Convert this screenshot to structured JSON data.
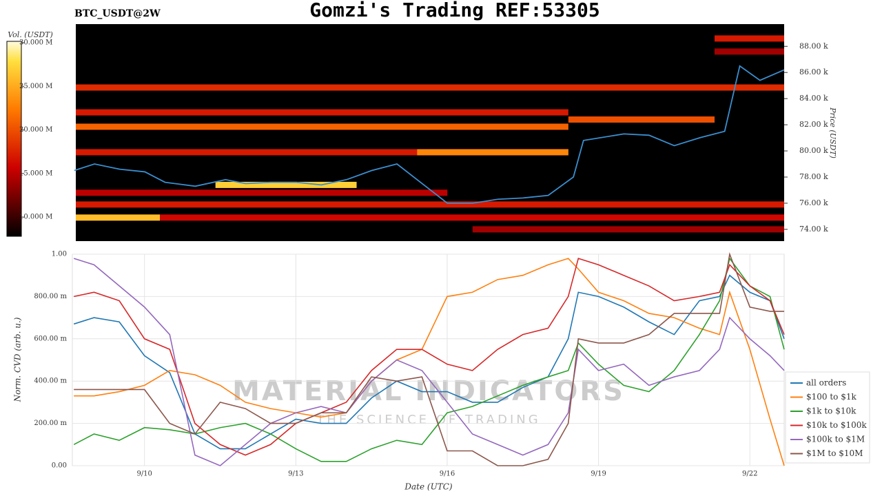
{
  "chart_data": [
    {
      "type": "heatmap",
      "title": "Gomzi's Trading REF:53305",
      "label": "BTC_USDT@2W",
      "ylabel": "Price (USDT)",
      "xlim": [
        8.63,
        22.68
      ],
      "ylim": [
        73.1,
        89.7
      ],
      "yticks": [
        {
          "value": 74,
          "label": "74.00 k"
        },
        {
          "value": 76,
          "label": "76.00 k"
        },
        {
          "value": 78,
          "label": "78.00 k"
        },
        {
          "value": 80,
          "label": "80.00 k"
        },
        {
          "value": 82,
          "label": "82.00 k"
        },
        {
          "value": 84,
          "label": "84.00 k"
        },
        {
          "value": 86,
          "label": "86.00 k"
        },
        {
          "value": 88,
          "label": "88.00 k"
        }
      ],
      "colorbar": {
        "label": "Vol. (USDT)",
        "lim": [
          7.8,
          30.16
        ],
        "ticks": [
          {
            "value": 10,
            "label": "10.000 M"
          },
          {
            "value": 15,
            "label": "15.000 M"
          },
          {
            "value": 20,
            "label": "20.000 M"
          },
          {
            "value": 25,
            "label": "25.000 M"
          },
          {
            "value": 30,
            "label": "30.000 M"
          }
        ]
      },
      "heatmap": {
        "x_start": [
          8.63,
          8.63,
          8.63,
          8.63,
          15.4,
          8.63,
          8.63,
          10.3,
          11.4,
          8.63,
          16.5,
          18.4,
          21.3,
          21.3
        ],
        "x_end": [
          22.68,
          18.4,
          18.4,
          18.4,
          18.4,
          22.68,
          10.3,
          22.68,
          14.2,
          16.0,
          22.68,
          21.3,
          22.68,
          22.68
        ],
        "price": [
          84.85,
          82.95,
          81.85,
          79.9,
          79.9,
          75.9,
          74.9,
          74.9,
          77.4,
          76.8,
          74.0,
          82.4,
          88.6,
          87.6
        ],
        "volume": [
          18,
          17,
          21,
          17,
          23,
          17,
          26,
          16,
          27,
          15,
          14,
          20,
          17,
          14
        ]
      },
      "price_line": {
        "color": "#3a8fd0",
        "x": [
          8.6,
          9.0,
          9.5,
          10.0,
          10.4,
          11.0,
          11.6,
          12.0,
          12.5,
          13.0,
          13.5,
          14.0,
          14.5,
          15.0,
          15.4,
          16.0,
          16.5,
          17.0,
          17.5,
          18.0,
          18.5,
          18.7,
          19.5,
          20.0,
          20.5,
          21.0,
          21.5,
          21.8,
          22.2,
          22.68
        ],
        "values": [
          78.5,
          79.0,
          78.6,
          78.4,
          77.6,
          77.3,
          77.8,
          77.5,
          77.6,
          77.6,
          77.4,
          77.8,
          78.5,
          79.0,
          77.8,
          76.0,
          76.0,
          76.3,
          76.4,
          76.6,
          78.0,
          80.8,
          81.3,
          81.2,
          80.4,
          81.0,
          81.5,
          86.5,
          85.4,
          86.2
        ]
      }
    },
    {
      "type": "line",
      "xlabel": "Date (UTC)",
      "ylabel": "Norm. CVD (arb. u.)",
      "xlim": [
        8.57,
        22.68
      ],
      "xticks": [
        {
          "value": 10,
          "label": "9/10"
        },
        {
          "value": 13,
          "label": "9/13"
        },
        {
          "value": 16,
          "label": "9/16"
        },
        {
          "value": 19,
          "label": "9/19"
        },
        {
          "value": 22,
          "label": "9/22"
        }
      ],
      "ylim": [
        0,
        1
      ],
      "yticks": [
        {
          "value": 0,
          "label": "0.00"
        },
        {
          "value": 0.2,
          "label": "200.00 m"
        },
        {
          "value": 0.4,
          "label": "400.00 m"
        },
        {
          "value": 0.6,
          "label": "600.00 m"
        },
        {
          "value": 0.8,
          "label": "800.00 m"
        },
        {
          "value": 1,
          "label": "1.00"
        }
      ],
      "grid": true,
      "legend": "lower right",
      "watermark": [
        "MATERIAL INDICATORS",
        "THE SCIENCE OF TRADING"
      ],
      "x": [
        8.6,
        9.0,
        9.5,
        10.0,
        10.5,
        11.0,
        11.5,
        12.0,
        12.5,
        13.0,
        13.5,
        14.0,
        14.5,
        15.0,
        15.5,
        16.0,
        16.5,
        17.0,
        17.5,
        18.0,
        18.4,
        18.6,
        19.0,
        19.5,
        20.0,
        20.5,
        21.0,
        21.4,
        21.6,
        22.0,
        22.4,
        22.68
      ],
      "series": [
        {
          "name": "all orders",
          "color": "#1f77b4",
          "values": [
            0.67,
            0.7,
            0.68,
            0.52,
            0.44,
            0.15,
            0.08,
            0.08,
            0.15,
            0.22,
            0.2,
            0.2,
            0.32,
            0.4,
            0.35,
            0.35,
            0.3,
            0.3,
            0.37,
            0.42,
            0.6,
            0.82,
            0.8,
            0.75,
            0.68,
            0.62,
            0.78,
            0.8,
            0.9,
            0.82,
            0.78,
            0.6
          ]
        },
        {
          "name": "$100 to $1k",
          "color": "#ff7f0e",
          "values": [
            0.33,
            0.33,
            0.35,
            0.38,
            0.45,
            0.43,
            0.38,
            0.3,
            0.27,
            0.25,
            0.23,
            0.25,
            0.4,
            0.5,
            0.55,
            0.8,
            0.82,
            0.88,
            0.9,
            0.95,
            0.98,
            0.93,
            0.82,
            0.78,
            0.72,
            0.7,
            0.65,
            0.62,
            0.82,
            0.55,
            0.22,
            0.0
          ]
        },
        {
          "name": "$1k to $10k",
          "color": "#2ca02c",
          "values": [
            0.1,
            0.15,
            0.12,
            0.18,
            0.17,
            0.15,
            0.18,
            0.2,
            0.15,
            0.08,
            0.02,
            0.02,
            0.08,
            0.12,
            0.1,
            0.25,
            0.28,
            0.33,
            0.38,
            0.42,
            0.45,
            0.58,
            0.48,
            0.38,
            0.35,
            0.45,
            0.62,
            0.78,
            0.98,
            0.85,
            0.8,
            0.55
          ]
        },
        {
          "name": "$10k to $100k",
          "color": "#d62728",
          "values": [
            0.8,
            0.82,
            0.78,
            0.6,
            0.55,
            0.2,
            0.1,
            0.05,
            0.1,
            0.2,
            0.25,
            0.3,
            0.45,
            0.55,
            0.55,
            0.48,
            0.45,
            0.55,
            0.62,
            0.65,
            0.8,
            0.98,
            0.95,
            0.9,
            0.85,
            0.78,
            0.8,
            0.82,
            0.95,
            0.85,
            0.78,
            0.62
          ]
        },
        {
          "name": "$100k to $1M",
          "color": "#9467bd",
          "values": [
            0.98,
            0.95,
            0.85,
            0.75,
            0.62,
            0.05,
            0.0,
            0.1,
            0.2,
            0.25,
            0.28,
            0.25,
            0.4,
            0.5,
            0.45,
            0.3,
            0.15,
            0.1,
            0.05,
            0.1,
            0.25,
            0.55,
            0.45,
            0.48,
            0.38,
            0.42,
            0.45,
            0.55,
            0.7,
            0.6,
            0.52,
            0.45
          ]
        },
        {
          "name": "$1M to $10M",
          "color": "#8c564b",
          "values": [
            0.36,
            0.36,
            0.36,
            0.36,
            0.2,
            0.15,
            0.3,
            0.27,
            0.2,
            0.2,
            0.25,
            0.25,
            0.42,
            0.4,
            0.42,
            0.07,
            0.07,
            0,
            0,
            0.03,
            0.2,
            0.6,
            0.58,
            0.58,
            0.62,
            0.72,
            0.72,
            0.72,
            1.0,
            0.75,
            0.73,
            0.73
          ]
        }
      ]
    }
  ]
}
